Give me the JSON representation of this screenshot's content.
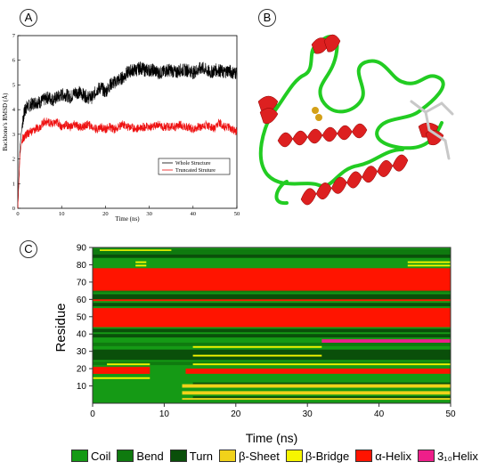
{
  "panels": {
    "a": "A",
    "b": "B",
    "c": "C"
  },
  "rmsd_chart": {
    "type": "line",
    "xlabel": "Time (ns)",
    "ylabel": "Backbone's RMSD (Å)",
    "xlim": [
      0,
      50
    ],
    "ylim": [
      0,
      7
    ],
    "xticks": [
      "0",
      "10",
      "20",
      "30",
      "40",
      "50"
    ],
    "yticks": [
      "0",
      "1",
      "2",
      "3",
      "4",
      "5",
      "6",
      "7"
    ],
    "series": [
      {
        "name": "Whole Structure",
        "color": "#000000",
        "x": [
          0,
          0.5,
          1,
          1.5,
          2,
          3,
          4,
          5,
          6,
          7,
          8,
          9,
          10,
          11,
          12,
          13,
          14,
          15,
          16,
          17,
          18,
          19,
          20,
          21,
          22,
          23,
          24,
          25,
          26,
          27,
          28,
          29,
          30,
          31,
          32,
          33,
          34,
          35,
          36,
          37,
          38,
          39,
          40,
          41,
          42,
          43,
          44,
          45,
          46,
          47,
          48,
          49,
          50
        ],
        "y": [
          0,
          2.5,
          3.4,
          3.9,
          4.1,
          4.2,
          4.3,
          4.3,
          4.4,
          4.5,
          4.4,
          4.5,
          4.6,
          4.6,
          4.5,
          4.7,
          4.7,
          4.6,
          4.5,
          4.5,
          4.8,
          4.9,
          4.7,
          5.0,
          5.1,
          5.2,
          5.3,
          5.5,
          5.6,
          5.6,
          5.7,
          5.6,
          5.6,
          5.6,
          5.5,
          5.5,
          5.6,
          5.6,
          5.5,
          5.6,
          5.6,
          5.6,
          5.5,
          5.6,
          5.7,
          5.6,
          5.5,
          5.6,
          5.6,
          5.5,
          5.6,
          5.5,
          5.5
        ]
      },
      {
        "name": "Truncated Struture",
        "color": "#ee1111",
        "x": [
          0,
          0.5,
          1,
          1.5,
          2,
          3,
          4,
          5,
          6,
          7,
          8,
          9,
          10,
          11,
          12,
          13,
          14,
          15,
          16,
          17,
          18,
          19,
          20,
          21,
          22,
          23,
          24,
          25,
          26,
          27,
          28,
          29,
          30,
          31,
          32,
          33,
          34,
          35,
          36,
          37,
          38,
          39,
          40,
          41,
          42,
          43,
          44,
          45,
          46,
          47,
          48,
          49,
          50
        ],
        "y": [
          0,
          2.2,
          2.8,
          2.9,
          3.0,
          3.1,
          3.2,
          3.3,
          3.5,
          3.5,
          3.4,
          3.5,
          3.3,
          3.4,
          3.3,
          3.4,
          3.3,
          3.3,
          3.4,
          3.3,
          3.2,
          3.3,
          3.2,
          3.3,
          3.2,
          3.3,
          3.4,
          3.3,
          3.3,
          3.2,
          3.3,
          3.3,
          3.3,
          3.3,
          3.4,
          3.3,
          3.3,
          3.3,
          3.3,
          3.4,
          3.3,
          3.3,
          3.2,
          3.3,
          3.3,
          3.4,
          3.3,
          3.2,
          3.5,
          3.3,
          3.3,
          3.2,
          3.1
        ]
      }
    ],
    "legend_position": "lower-right"
  },
  "dssp_chart": {
    "type": "heatmap",
    "xlabel": "Time (ns)",
    "ylabel": "Residue",
    "xlim": [
      0,
      50
    ],
    "ylim": [
      0,
      90
    ],
    "xticks": [
      "0",
      "10",
      "20",
      "30",
      "40",
      "50"
    ],
    "yticks": [
      "10",
      "20",
      "30",
      "40",
      "50",
      "60",
      "70",
      "80",
      "90"
    ],
    "background_state": "Coil",
    "bands": [
      {
        "state": "Turn",
        "res": [
          3,
          4
        ],
        "t": [
          14,
          50
        ]
      },
      {
        "state": "Turn",
        "res": [
          10,
          12
        ],
        "t": [
          14,
          50
        ]
      },
      {
        "state": "Turn",
        "res": [
          25,
          31
        ],
        "t": [
          0,
          50
        ]
      },
      {
        "state": "Turn",
        "res": [
          38,
          40
        ],
        "t": [
          0,
          50
        ]
      },
      {
        "state": "Turn",
        "res": [
          41,
          43
        ],
        "t": [
          0,
          50
        ]
      },
      {
        "state": "Turn",
        "res": [
          56,
          58
        ],
        "t": [
          0,
          50
        ]
      },
      {
        "state": "Turn",
        "res": [
          60,
          63
        ],
        "t": [
          0,
          50
        ]
      },
      {
        "state": "Turn",
        "res": [
          84,
          86
        ],
        "t": [
          0,
          50
        ]
      },
      {
        "state": "Bend",
        "res": [
          22,
          24
        ],
        "t": [
          0,
          50
        ]
      },
      {
        "state": "Bend",
        "res": [
          33,
          35
        ],
        "t": [
          0,
          50
        ]
      },
      {
        "state": "Bend",
        "res": [
          64,
          66
        ],
        "t": [
          0,
          50
        ]
      },
      {
        "state": "Bend",
        "res": [
          86,
          89
        ],
        "t": [
          0,
          50
        ]
      },
      {
        "state": "α-Helix",
        "res": [
          17,
          21
        ],
        "t": [
          0,
          8
        ]
      },
      {
        "state": "α-Helix",
        "res": [
          17,
          20
        ],
        "t": [
          13,
          50
        ]
      },
      {
        "state": "α-Helix",
        "res": [
          44,
          55
        ],
        "t": [
          0,
          50
        ]
      },
      {
        "state": "α-Helix",
        "res": [
          59,
          60
        ],
        "t": [
          0,
          50
        ]
      },
      {
        "state": "α-Helix",
        "res": [
          65,
          78
        ],
        "t": [
          0,
          50
        ]
      },
      {
        "state": "3₁₀Helix",
        "res": [
          35,
          37
        ],
        "t": [
          32,
          50
        ]
      },
      {
        "state": "β-Bridge",
        "res": [
          88,
          88.8
        ],
        "t": [
          1,
          11
        ]
      },
      {
        "state": "β-Bridge",
        "res": [
          81,
          82
        ],
        "t": [
          6,
          7.5
        ]
      },
      {
        "state": "β-Bridge",
        "res": [
          79,
          80
        ],
        "t": [
          6,
          7.5
        ]
      },
      {
        "state": "β-Bridge",
        "res": [
          81,
          82
        ],
        "t": [
          44,
          50
        ]
      },
      {
        "state": "β-Bridge",
        "res": [
          79,
          80
        ],
        "t": [
          44,
          50
        ]
      },
      {
        "state": "β-Bridge",
        "res": [
          32,
          33
        ],
        "t": [
          14,
          32
        ]
      },
      {
        "state": "β-Bridge",
        "res": [
          27,
          28
        ],
        "t": [
          14,
          32
        ]
      },
      {
        "state": "β-Bridge",
        "res": [
          22,
          23
        ],
        "t": [
          2,
          8
        ]
      },
      {
        "state": "β-Bridge",
        "res": [
          22,
          23
        ],
        "t": [
          14,
          50
        ]
      },
      {
        "state": "β-Bridge",
        "res": [
          14,
          15
        ],
        "t": [
          0,
          8
        ]
      },
      {
        "state": "β-Sheet",
        "res": [
          9,
          11
        ],
        "t": [
          12.5,
          50
        ]
      },
      {
        "state": "β-Sheet",
        "res": [
          5,
          7
        ],
        "t": [
          12.5,
          50
        ]
      },
      {
        "state": "β-Sheet",
        "res": [
          2,
          3
        ],
        "t": [
          12.5,
          50
        ]
      }
    ],
    "legend": [
      {
        "label": "Coil",
        "color": "#159a15"
      },
      {
        "label": "Bend",
        "color": "#0f7a0f"
      },
      {
        "label": "Turn",
        "color": "#0a4f0a"
      },
      {
        "label": "β-Sheet",
        "color": "#f1d21a"
      },
      {
        "label": "β-Bridge",
        "color": "#f6f500"
      },
      {
        "label": "α-Helix",
        "color": "#ff1400"
      },
      {
        "label": "3₁₀Helix",
        "color": "#ee1f8a"
      }
    ]
  },
  "colors": {
    "helix": "#dd2020",
    "loop": "#22cc22",
    "ligand": "#c8c8c8",
    "ion": "#d4a017"
  }
}
